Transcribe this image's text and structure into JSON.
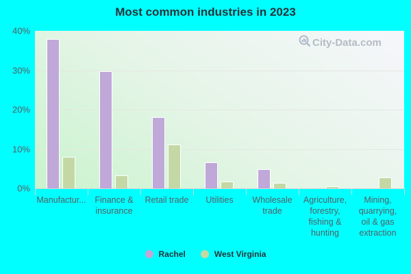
{
  "chart_data": {
    "type": "bar",
    "title": "Most common industries in 2023",
    "xlabel": "",
    "ylabel": "",
    "ylim": [
      0,
      40
    ],
    "yticks": [
      "0%",
      "10%",
      "20%",
      "30%",
      "40%"
    ],
    "grid": true,
    "legend_position": "bottom",
    "categories": [
      "Manufactur...",
      "Finance & insurance",
      "Retail trade",
      "Utilities",
      "Wholesale trade",
      "Agriculture, forestry, fishing & hunting",
      "Mining, quarrying, oil & gas extraction"
    ],
    "series": [
      {
        "name": "Rachel",
        "color": "#c0a8d8",
        "values": [
          38.0,
          29.7,
          18.1,
          6.6,
          4.9,
          0,
          0
        ]
      },
      {
        "name": "West Virginia",
        "color": "#c4d8a6",
        "values": [
          8.0,
          3.3,
          11.1,
          1.7,
          1.4,
          0.5,
          2.8
        ]
      }
    ]
  },
  "labels": {
    "title": "Most common industries in 2023",
    "watermark": "City-Data.com",
    "yticks": [
      "40%",
      "30%",
      "20%",
      "10%",
      "0%"
    ],
    "x": [
      "Manufactur...",
      "Finance &\ninsurance",
      "Retail trade",
      "Utilities",
      "Wholesale\ntrade",
      "Agriculture,\nforestry,\nfishing &\nhunting",
      "Mining,\nquarrying,\noil & gas\nextraction"
    ],
    "legend": [
      "Rachel",
      "West Virginia"
    ]
  }
}
